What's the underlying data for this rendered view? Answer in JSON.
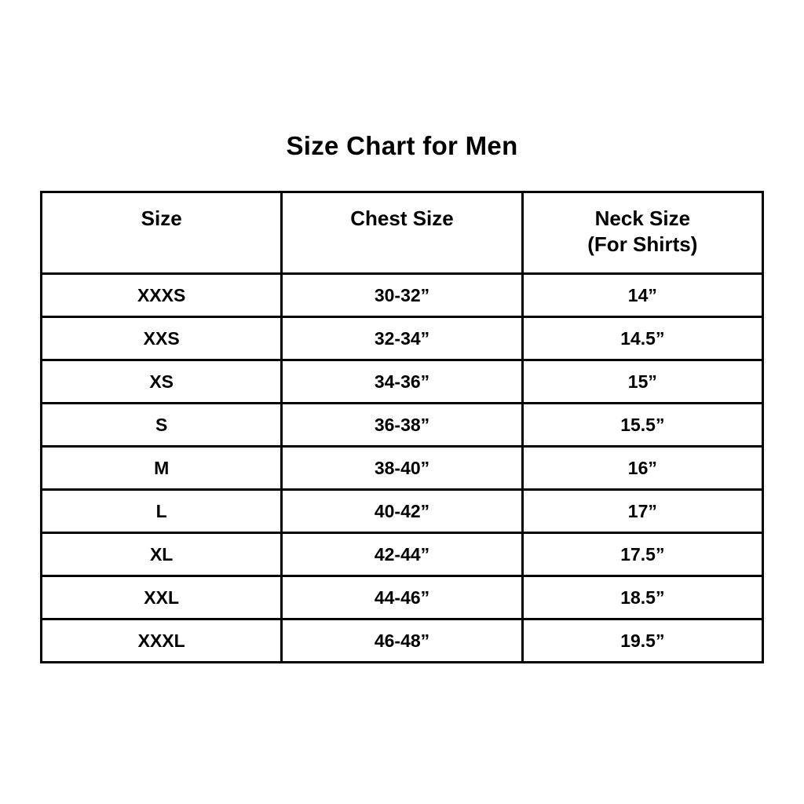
{
  "page": {
    "title": "Size Chart for Men",
    "background_color": "#ffffff",
    "text_color": "#000000",
    "border_color": "#000000"
  },
  "table": {
    "headers": [
      {
        "label": "Size"
      },
      {
        "label": "Chest Size"
      },
      {
        "label": "Neck Size",
        "sub": "(For Shirts)"
      }
    ],
    "rows": [
      [
        "XXXS",
        "30-32”",
        "14”"
      ],
      [
        "XXS",
        "32-34”",
        "14.5”"
      ],
      [
        "XS",
        "34-36”",
        "15”"
      ],
      [
        "S",
        "36-38”",
        "15.5”"
      ],
      [
        "M",
        "38-40”",
        "16”"
      ],
      [
        "L",
        "40-42”",
        "17”"
      ],
      [
        "XL",
        "42-44”",
        "17.5”"
      ],
      [
        "XXL",
        "44-46”",
        "18.5”"
      ],
      [
        "XXXL",
        "46-48”",
        "19.5”"
      ]
    ]
  },
  "chart_data": {
    "type": "table",
    "title": "Size Chart for Men",
    "columns": [
      "Size",
      "Chest Size",
      "Neck Size (For Shirts)"
    ],
    "rows": [
      [
        "XXXS",
        "30-32”",
        "14”"
      ],
      [
        "XXS",
        "32-34”",
        "14.5”"
      ],
      [
        "XS",
        "34-36”",
        "15”"
      ],
      [
        "S",
        "36-38”",
        "15.5”"
      ],
      [
        "M",
        "38-40”",
        "16”"
      ],
      [
        "L",
        "40-42”",
        "17”"
      ],
      [
        "XL",
        "42-44”",
        "17.5”"
      ],
      [
        "XXL",
        "44-46”",
        "18.5”"
      ],
      [
        "XXXL",
        "46-48”",
        "19.5”"
      ]
    ],
    "legend_position": "none",
    "grid": true
  }
}
